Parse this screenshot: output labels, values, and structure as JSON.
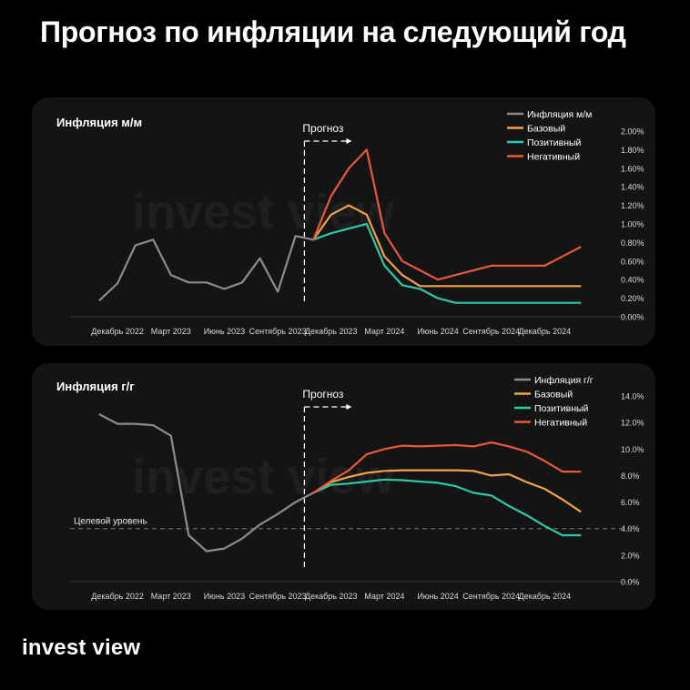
{
  "title": "Прогноз по инфляции на следующий год",
  "brand": "invest view",
  "watermark": "invest view",
  "colors": {
    "background": "#000000",
    "panel": "#141414",
    "history": "#8c8c8c",
    "base": "#f0a24c",
    "positive": "#2ec9a7",
    "negative": "#e8593c",
    "grid_text": "#d9d9d9"
  },
  "chart_data": [
    {
      "type": "line",
      "title": "Инфляция м/м",
      "forecast_label": "Прогноз",
      "x_categories": [
        "Декабрь 2022",
        "Март 2023",
        "Июнь 2023",
        "Сентябрь 2023",
        "Декабрь 2023",
        "Март 2024",
        "Июнь 2024",
        "Сентябрь 2024",
        "Декабрь 2024"
      ],
      "y_ticks": [
        "0.00%",
        "0.20%",
        "0.40%",
        "0.60%",
        "0.80%",
        "1.00%",
        "1.20%",
        "1.40%",
        "1.60%",
        "1.80%",
        "2.00%"
      ],
      "ylim": [
        0,
        2.0
      ],
      "xlim": [
        -3,
        26
      ],
      "forecast_start": 9.5,
      "legend_position": "top-right",
      "series": [
        {
          "name": "Инфляция м/м",
          "key": "history",
          "x": [
            -2,
            -1,
            0,
            1,
            2,
            3,
            4,
            5,
            6,
            7,
            8,
            9,
            10
          ],
          "values": [
            0.18,
            0.36,
            0.77,
            0.83,
            0.45,
            0.37,
            0.37,
            0.3,
            0.37,
            0.63,
            0.27,
            0.87,
            0.83
          ]
        },
        {
          "name": "Базовый",
          "key": "base",
          "x": [
            10,
            11,
            12,
            13,
            14,
            15,
            16,
            17,
            18,
            19,
            20,
            21,
            22,
            23,
            24,
            25
          ],
          "values": [
            0.83,
            1.1,
            1.2,
            1.1,
            0.65,
            0.45,
            0.33,
            0.33,
            0.33,
            0.33,
            0.33,
            0.33,
            0.33,
            0.33,
            0.33,
            0.33
          ]
        },
        {
          "name": "Позитивный",
          "key": "positive",
          "x": [
            10,
            11,
            12,
            13,
            14,
            15,
            16,
            17,
            18,
            19,
            20,
            21,
            22,
            23,
            24,
            25
          ],
          "values": [
            0.83,
            0.9,
            0.95,
            1.0,
            0.55,
            0.34,
            0.3,
            0.2,
            0.15,
            0.15,
            0.15,
            0.15,
            0.15,
            0.15,
            0.15,
            0.15
          ]
        },
        {
          "name": "Негативный",
          "key": "negative",
          "x": [
            10,
            11,
            12,
            13,
            14,
            15,
            16,
            17,
            18,
            19,
            20,
            21,
            22,
            23,
            24,
            25
          ],
          "values": [
            0.83,
            1.3,
            1.6,
            1.8,
            0.9,
            0.6,
            0.5,
            0.4,
            0.45,
            0.5,
            0.55,
            0.55,
            0.55,
            0.55,
            0.65,
            0.75
          ]
        }
      ]
    },
    {
      "type": "line",
      "title": "Инфляция г/г",
      "forecast_label": "Прогноз",
      "target_label": "Целевой уровень",
      "target_value": 4.0,
      "x_categories": [
        "Декабрь 2022",
        "Март 2023",
        "Июнь 2023",
        "Сентябрь 2023",
        "Декабрь 2023",
        "Март 2024",
        "Июнь 2024",
        "Сентябрь 2024",
        "Декабрь 2024"
      ],
      "y_ticks": [
        "0.0%",
        "2.0%",
        "4.0%",
        "6.0%",
        "8.0%",
        "10.0%",
        "12.0%",
        "14.0%"
      ],
      "ylim": [
        0,
        14.0
      ],
      "xlim": [
        -3,
        26
      ],
      "forecast_start": 9.5,
      "legend_position": "top-right",
      "series": [
        {
          "name": "Инфляция г/г",
          "key": "history",
          "x": [
            -2,
            -1,
            0,
            1,
            2,
            3,
            4,
            5,
            6,
            7,
            8,
            9,
            10
          ],
          "values": [
            12.6,
            11.9,
            11.9,
            11.8,
            11.0,
            3.5,
            2.3,
            2.5,
            3.25,
            4.3,
            5.1,
            6.0,
            6.7
          ]
        },
        {
          "name": "Базовый",
          "key": "base",
          "x": [
            10,
            11,
            12,
            13,
            14,
            15,
            16,
            17,
            18,
            19,
            20,
            21,
            22,
            23,
            24,
            25
          ],
          "values": [
            6.7,
            7.5,
            7.9,
            8.2,
            8.35,
            8.4,
            8.4,
            8.4,
            8.4,
            8.35,
            8.0,
            8.1,
            7.5,
            7.0,
            6.2,
            5.3
          ]
        },
        {
          "name": "Позитивный",
          "key": "positive",
          "x": [
            10,
            11,
            12,
            13,
            14,
            15,
            16,
            17,
            18,
            19,
            20,
            21,
            22,
            23,
            24,
            25
          ],
          "values": [
            6.7,
            7.3,
            7.4,
            7.55,
            7.7,
            7.65,
            7.55,
            7.45,
            7.2,
            6.7,
            6.5,
            5.7,
            5.0,
            4.2,
            3.5,
            3.5
          ]
        },
        {
          "name": "Негативный",
          "key": "negative",
          "x": [
            10,
            11,
            12,
            13,
            14,
            15,
            16,
            17,
            18,
            19,
            20,
            21,
            22,
            23,
            24,
            25
          ],
          "values": [
            6.7,
            7.6,
            8.4,
            9.6,
            10.0,
            10.25,
            10.2,
            10.25,
            10.3,
            10.2,
            10.5,
            10.2,
            9.8,
            9.1,
            8.3,
            8.3
          ]
        }
      ]
    }
  ]
}
